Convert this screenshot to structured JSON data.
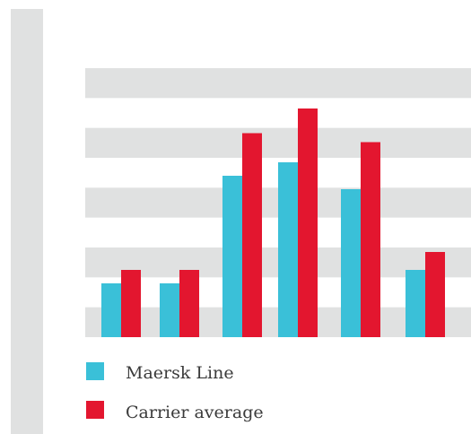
{
  "chart_data": {
    "type": "bar",
    "categories": [
      "",
      "",
      "",
      "",
      "",
      ""
    ],
    "series": [
      {
        "name": "Maersk Line",
        "color": "#3ac0d8",
        "values": [
          2.4,
          2.4,
          7.2,
          7.8,
          6.6,
          3.0
        ]
      },
      {
        "name": "Carrier average",
        "color": "#e3162f",
        "values": [
          3.0,
          3.0,
          9.1,
          10.2,
          8.7,
          3.8
        ]
      }
    ],
    "ylim": [
      0,
      12
    ],
    "grid": true,
    "stripe_color": "#e0e1e1",
    "legend": {
      "placement": "bottom-left"
    }
  }
}
